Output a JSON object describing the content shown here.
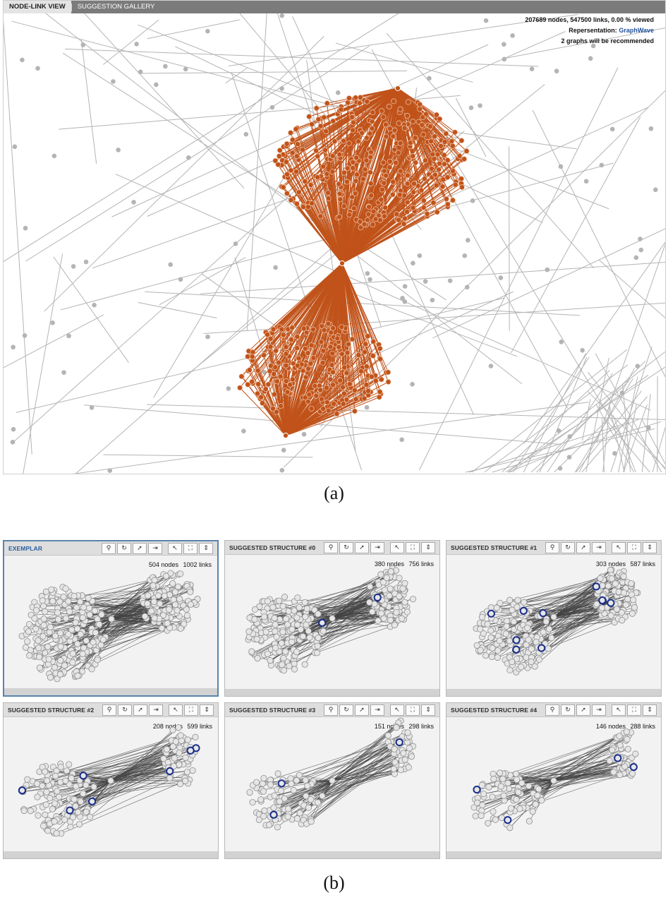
{
  "view_a": {
    "tabs": [
      {
        "label": "NODE-LINK VIEW",
        "active": true
      },
      {
        "label": "SUGGESTION GALLERY",
        "active": false
      }
    ],
    "stats": {
      "summary": "207689 nodes, 547500 links, 0.00 % viewed",
      "representation_label": "Repersentation:",
      "representation_value": "GraphWave",
      "recommend": "2 graphs will be recommended"
    },
    "colors": {
      "highlight": "#c0531a",
      "context": "#b4b4b4",
      "background": "#ffffff"
    }
  },
  "caption_a": "(a)",
  "caption_b": "(b)",
  "gallery": {
    "colors": {
      "node": "#e6e6e6",
      "node_outline": "#8f8f8f",
      "link": "#444444",
      "match_node": "#1a2f8c"
    },
    "tool_icons": [
      "link-icon",
      "refresh-icon",
      "send-icon",
      "export-icon",
      "pointer-icon",
      "expand-icon",
      "fit-icon"
    ],
    "panels": [
      {
        "title": "EXEMPLAR",
        "nodes": "504 nodes",
        "links": "1002 links",
        "exemplar": true
      },
      {
        "title": "SUGGESTED STRUCTURE #0",
        "nodes": "380 nodes",
        "links": "756 links",
        "exemplar": false
      },
      {
        "title": "SUGGESTED STRUCTURE #1",
        "nodes": "303 nodes",
        "links": "587 links",
        "exemplar": false
      },
      {
        "title": "SUGGESTED STRUCTURE #2",
        "nodes": "208 nodes",
        "links": "599 links",
        "exemplar": false
      },
      {
        "title": "SUGGESTED STRUCTURE #3",
        "nodes": "151 nodes",
        "links": "298 links",
        "exemplar": false
      },
      {
        "title": "SUGGESTED STRUCTURE #4",
        "nodes": "146 nodes",
        "links": "288 links",
        "exemplar": false
      }
    ]
  }
}
